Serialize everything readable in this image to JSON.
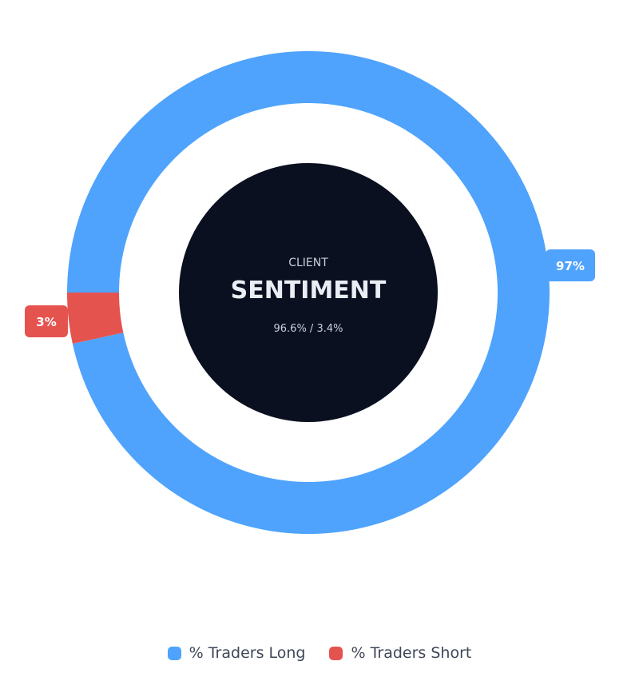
{
  "chart_data": {
    "type": "pie",
    "categories": [
      "% Traders Long",
      "% Traders Short"
    ],
    "values": [
      96.6,
      3.4
    ],
    "data_labels": [
      "97%",
      "3%"
    ],
    "colors": [
      "#4fa3fc",
      "#e5534f"
    ],
    "center_title": "SENTIMENT",
    "center_subtitle": "CLIENT",
    "center_caption": "96.6% / 3.4%",
    "legend_position": "bottom",
    "center_color": "#0b1020"
  }
}
